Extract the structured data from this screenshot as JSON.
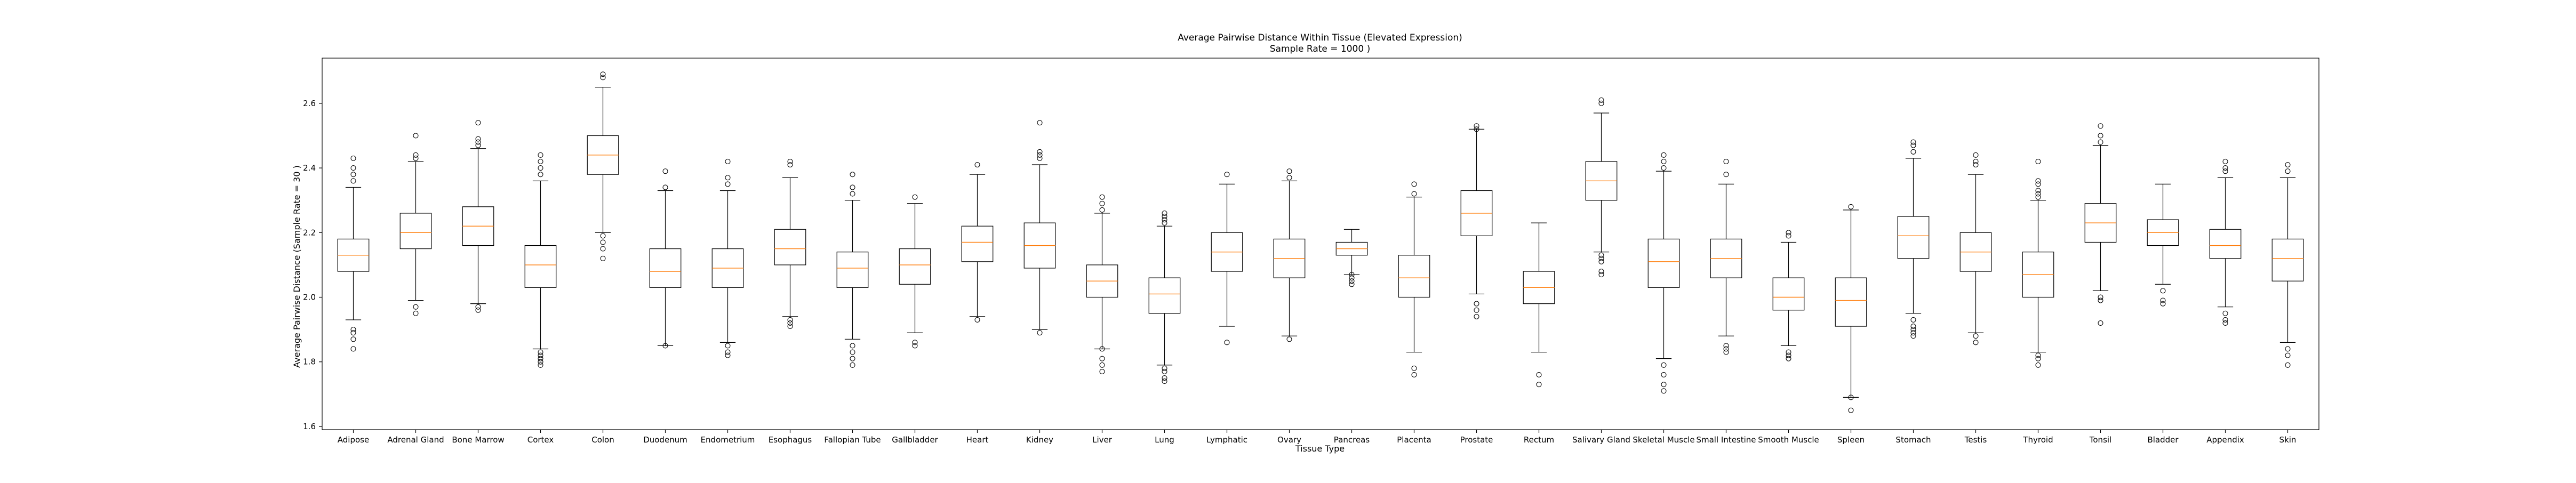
{
  "chart_data": {
    "type": "box",
    "title": "Average Pairwise Distance Within Tissue (Elevated Expression)",
    "subtitle": "Sample Rate = 1000 )",
    "xlabel": "Tissue Type",
    "ylabel": "Average Pairwise Distance (Sample Rate = 30 )",
    "ylim": [
      1.59,
      2.74
    ],
    "yticks": [
      "1.6",
      "1.8",
      "2.0",
      "2.2",
      "2.4",
      "2.6"
    ],
    "colors": {
      "box": "#000000",
      "median": "#ff7f0e",
      "frame": "#000000"
    },
    "categories": [
      "Adipose",
      "Adrenal Gland",
      "Bone Marrow",
      "Cortex",
      "Colon",
      "Duodenum",
      "Endometrium",
      "Esophagus",
      "Fallopian Tube",
      "Gallbladder",
      "Heart",
      "Kidney",
      "Liver",
      "Lung",
      "Lymphatic",
      "Ovary",
      "Pancreas",
      "Placenta",
      "Prostate",
      "Rectum",
      "Salivary Gland",
      "Skeletal Muscle",
      "Small Intestine",
      "Smooth Muscle",
      "Spleen",
      "Stomach",
      "Testis",
      "Thyroid",
      "Tonsil",
      "Bladder",
      "Appendix",
      "Skin"
    ],
    "boxes": [
      {
        "whislo": 1.93,
        "q1": 2.08,
        "med": 2.13,
        "q3": 2.18,
        "whishi": 2.34,
        "fliers": [
          1.84,
          1.87,
          1.89,
          1.9,
          2.36,
          2.38,
          2.4,
          2.43
        ]
      },
      {
        "whislo": 1.99,
        "q1": 2.15,
        "med": 2.2,
        "q3": 2.26,
        "whishi": 2.42,
        "fliers": [
          1.95,
          1.97,
          2.43,
          2.44,
          2.5
        ]
      },
      {
        "whislo": 1.98,
        "q1": 2.16,
        "med": 2.22,
        "q3": 2.28,
        "whishi": 2.46,
        "fliers": [
          1.96,
          1.97,
          2.47,
          2.48,
          2.49,
          2.54
        ]
      },
      {
        "whislo": 1.84,
        "q1": 2.03,
        "med": 2.1,
        "q3": 2.16,
        "whishi": 2.36,
        "fliers": [
          1.79,
          1.8,
          1.81,
          1.82,
          1.83,
          2.38,
          2.4,
          2.42,
          2.44
        ]
      },
      {
        "whislo": 2.2,
        "q1": 2.38,
        "med": 2.44,
        "q3": 2.5,
        "whishi": 2.65,
        "fliers": [
          2.12,
          2.15,
          2.17,
          2.19,
          2.68,
          2.69
        ]
      },
      {
        "whislo": 1.85,
        "q1": 2.03,
        "med": 2.08,
        "q3": 2.15,
        "whishi": 2.33,
        "fliers": [
          1.85,
          2.34,
          2.39
        ]
      },
      {
        "whislo": 1.86,
        "q1": 2.03,
        "med": 2.09,
        "q3": 2.15,
        "whishi": 2.33,
        "fliers": [
          1.82,
          1.83,
          1.85,
          2.35,
          2.37,
          2.42
        ]
      },
      {
        "whislo": 1.94,
        "q1": 2.1,
        "med": 2.15,
        "q3": 2.21,
        "whishi": 2.37,
        "fliers": [
          1.91,
          1.92,
          1.93,
          2.41,
          2.42
        ]
      },
      {
        "whislo": 1.87,
        "q1": 2.03,
        "med": 2.09,
        "q3": 2.14,
        "whishi": 2.3,
        "fliers": [
          1.79,
          1.81,
          1.83,
          1.85,
          2.32,
          2.34,
          2.38
        ]
      },
      {
        "whislo": 1.89,
        "q1": 2.04,
        "med": 2.1,
        "q3": 2.15,
        "whishi": 2.29,
        "fliers": [
          1.85,
          1.86,
          2.31
        ]
      },
      {
        "whislo": 1.94,
        "q1": 2.11,
        "med": 2.17,
        "q3": 2.22,
        "whishi": 2.38,
        "fliers": [
          1.93,
          2.41
        ]
      },
      {
        "whislo": 1.9,
        "q1": 2.09,
        "med": 2.16,
        "q3": 2.23,
        "whishi": 2.41,
        "fliers": [
          1.89,
          2.43,
          2.44,
          2.45,
          2.54
        ]
      },
      {
        "whislo": 1.84,
        "q1": 2.0,
        "med": 2.05,
        "q3": 2.1,
        "whishi": 2.26,
        "fliers": [
          1.77,
          1.79,
          1.81,
          1.84,
          2.27,
          2.29,
          2.31
        ]
      },
      {
        "whislo": 1.79,
        "q1": 1.95,
        "med": 2.01,
        "q3": 2.06,
        "whishi": 2.22,
        "fliers": [
          1.74,
          1.75,
          1.77,
          1.78,
          2.23,
          2.24,
          2.25,
          2.26
        ]
      },
      {
        "whislo": 1.91,
        "q1": 2.08,
        "med": 2.14,
        "q3": 2.2,
        "whishi": 2.35,
        "fliers": [
          1.86,
          2.38
        ]
      },
      {
        "whislo": 1.88,
        "q1": 2.06,
        "med": 2.12,
        "q3": 2.18,
        "whishi": 2.36,
        "fliers": [
          1.87,
          2.37,
          2.39
        ]
      },
      {
        "whislo": 2.07,
        "q1": 2.13,
        "med": 2.15,
        "q3": 2.17,
        "whishi": 2.21,
        "fliers": [
          2.04,
          2.05,
          2.06,
          2.07
        ]
      },
      {
        "whislo": 1.83,
        "q1": 2.0,
        "med": 2.06,
        "q3": 2.13,
        "whishi": 2.31,
        "fliers": [
          1.76,
          1.78,
          2.32,
          2.35
        ]
      },
      {
        "whislo": 2.01,
        "q1": 2.19,
        "med": 2.26,
        "q3": 2.33,
        "whishi": 2.52,
        "fliers": [
          1.94,
          1.96,
          1.98,
          2.52,
          2.53
        ]
      },
      {
        "whislo": 1.83,
        "q1": 1.98,
        "med": 2.03,
        "q3": 2.08,
        "whishi": 2.23,
        "fliers": [
          1.73,
          1.76
        ]
      },
      {
        "whislo": 2.14,
        "q1": 2.3,
        "med": 2.36,
        "q3": 2.42,
        "whishi": 2.57,
        "fliers": [
          2.07,
          2.08,
          2.11,
          2.12,
          2.13,
          2.6,
          2.61
        ]
      },
      {
        "whislo": 1.81,
        "q1": 2.03,
        "med": 2.11,
        "q3": 2.18,
        "whishi": 2.39,
        "fliers": [
          1.71,
          1.73,
          1.76,
          1.79,
          2.4,
          2.42,
          2.44
        ]
      },
      {
        "whislo": 1.88,
        "q1": 2.06,
        "med": 2.12,
        "q3": 2.18,
        "whishi": 2.35,
        "fliers": [
          1.83,
          1.84,
          1.85,
          2.38,
          2.42
        ]
      },
      {
        "whislo": 1.85,
        "q1": 1.96,
        "med": 2.0,
        "q3": 2.06,
        "whishi": 2.17,
        "fliers": [
          1.81,
          1.82,
          1.83,
          2.19,
          2.2
        ]
      },
      {
        "whislo": 1.69,
        "q1": 1.91,
        "med": 1.99,
        "q3": 2.06,
        "whishi": 2.27,
        "fliers": [
          1.65,
          1.69,
          2.28
        ]
      },
      {
        "whislo": 1.95,
        "q1": 2.12,
        "med": 2.19,
        "q3": 2.25,
        "whishi": 2.43,
        "fliers": [
          1.88,
          1.89,
          1.9,
          1.91,
          1.93,
          2.45,
          2.47,
          2.48
        ]
      },
      {
        "whislo": 1.89,
        "q1": 2.08,
        "med": 2.14,
        "q3": 2.2,
        "whishi": 2.38,
        "fliers": [
          1.86,
          1.88,
          2.41,
          2.42,
          2.44
        ]
      },
      {
        "whislo": 1.83,
        "q1": 2.0,
        "med": 2.07,
        "q3": 2.14,
        "whishi": 2.3,
        "fliers": [
          1.79,
          1.81,
          1.82,
          2.31,
          2.32,
          2.33,
          2.35,
          2.36,
          2.42
        ]
      },
      {
        "whislo": 2.02,
        "q1": 2.17,
        "med": 2.23,
        "q3": 2.29,
        "whishi": 2.47,
        "fliers": [
          1.92,
          1.99,
          2.0,
          2.48,
          2.5,
          2.53
        ]
      },
      {
        "whislo": 2.04,
        "q1": 2.16,
        "med": 2.2,
        "q3": 2.24,
        "whishi": 2.35,
        "fliers": [
          1.98,
          1.99,
          2.02
        ]
      },
      {
        "whislo": 1.97,
        "q1": 2.12,
        "med": 2.16,
        "q3": 2.21,
        "whishi": 2.37,
        "fliers": [
          1.92,
          1.93,
          1.95,
          2.39,
          2.4,
          2.42
        ]
      },
      {
        "whislo": 1.86,
        "q1": 2.05,
        "med": 2.12,
        "q3": 2.18,
        "whishi": 2.37,
        "fliers": [
          1.79,
          1.82,
          1.84,
          2.39,
          2.41
        ]
      }
    ]
  }
}
